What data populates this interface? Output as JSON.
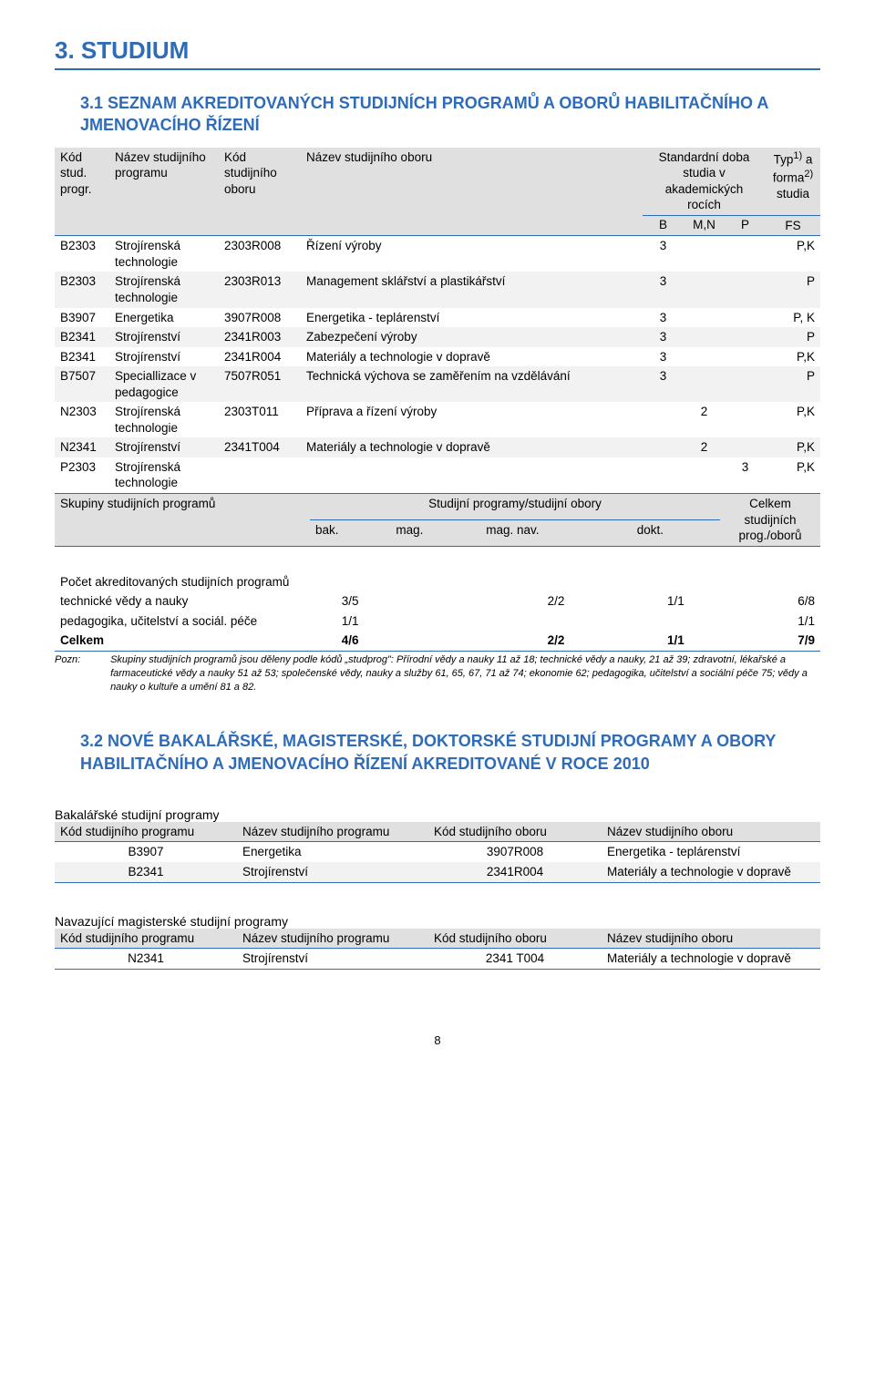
{
  "headings": {
    "h1": "3.  STUDIUM",
    "h2a": "3.1  SEZNAM AKREDITOVANÝCH STUDIJNÍCH PROGRAMŮ A OBORŮ HABILITAČNÍHO A JMENOVACÍHO ŘÍZENÍ",
    "h2b": "3.2  NOVÉ BAKALÁŘSKÉ, MAGISTERSKÉ, DOKTORSKÉ STUDIJNÍ PROGRAMY A OBORY HABILITAČNÍHO A JMENOVACÍHO ŘÍZENÍ AKREDITOVANÉ V ROCE 2010"
  },
  "table1": {
    "head": {
      "c1": "Kód stud. progr.",
      "c2": "Název studijního programu",
      "c3": "Kód studijního oboru",
      "c4": "Název studijního oboru",
      "c5a": "Standardní doba studia v akademických rocích",
      "c5b_prefix": "Typ",
      "c5b_sup1": "1)",
      "c5b_mid": " a forma",
      "c5b_sup2": "2)",
      "c5b_suffix": " studia",
      "b": "B",
      "mn": "M,N",
      "p": "P",
      "fs": "FS"
    },
    "rows": [
      {
        "c1": "B2303",
        "c2": "Strojírenská technologie",
        "c3": "2303R008",
        "c4": "Řízení výroby",
        "b": "3",
        "mn": "",
        "p": "",
        "fs": "P,K"
      },
      {
        "c1": "B2303",
        "c2": "Strojírenská technologie",
        "c3": "2303R013",
        "c4": "Management sklářství a plastikářství",
        "b": "3",
        "mn": "",
        "p": "",
        "fs": "P"
      },
      {
        "c1": "B3907",
        "c2": "Energetika",
        "c3": "3907R008",
        "c4": "Energetika - teplárenství",
        "b": "3",
        "mn": "",
        "p": "",
        "fs": "P, K"
      },
      {
        "c1": "B2341",
        "c2": "Strojírenství",
        "c3": "2341R003",
        "c4": "Zabezpečení výroby",
        "b": "3",
        "mn": "",
        "p": "",
        "fs": "P"
      },
      {
        "c1": "B2341",
        "c2": "Strojírenství",
        "c3": "2341R004",
        "c4": "Materiály a technologie v dopravě",
        "b": "3",
        "mn": "",
        "p": "",
        "fs": "P,K"
      },
      {
        "c1": "B7507",
        "c2": "Speciallizace v pedagogice",
        "c3": "7507R051",
        "c4": "Technická výchova se zaměřením na vzdělávání",
        "b": "3",
        "mn": "",
        "p": "",
        "fs": "P"
      },
      {
        "c1": "N2303",
        "c2": "Strojírenská technologie",
        "c3": "2303T011",
        "c4": "Příprava a řízení výroby",
        "b": "",
        "mn": "2",
        "p": "",
        "fs": "P,K"
      },
      {
        "c1": "N2341",
        "c2": "Strojírenství",
        "c3": "2341T004",
        "c4": "Materiály a technologie v dopravě",
        "b": "",
        "mn": "2",
        "p": "",
        "fs": "P,K"
      },
      {
        "c1": "P2303",
        "c2": "Strojírenská technologie",
        "c3": "",
        "c4": "",
        "b": "",
        "mn": "",
        "p": "3",
        "fs": "P,K"
      }
    ]
  },
  "table2": {
    "title": "Počet akreditovaných studijních programů",
    "head": {
      "c1": "Skupiny studijních programů",
      "span": "Studijní programy/studijní obory",
      "last": "Celkem studijních prog./oborů",
      "bak": "bak.",
      "mag": "mag.",
      "magnav": "mag. nav.",
      "dokt": "dokt."
    },
    "rows": [
      {
        "c1": "technické vědy a nauky",
        "bak": "3/5",
        "mag": "",
        "magnav": "2/2",
        "dokt": "1/1",
        "sum": "6/8"
      },
      {
        "c1": "pedagogika, učitelství a sociál. péče",
        "bak": "1/1",
        "mag": "",
        "magnav": "",
        "dokt": "",
        "sum": "1/1"
      }
    ],
    "total": {
      "c1": "Celkem",
      "bak": "4/6",
      "mag": "",
      "magnav": "2/2",
      "dokt": "1/1",
      "sum": "7/9"
    }
  },
  "note": {
    "label": "Pozn:",
    "text": "Skupiny studijních programů jsou děleny podle kódů „studprog\": Přírodní vědy a nauky 11 až 18; technické vědy a nauky, 21 až 39; zdravotní, lékařské a farmaceutické vědy a nauky 51 až 53; společenské vědy, nauky a služby 61, 65, 67, 71 až 74; ekonomie 62; pedagogika, učitelství a sociální péče 75; vědy a nauky o kultuře a umění 81 a 82."
  },
  "section3": {
    "bak_title": "Bakalářské studijní programy",
    "nav_title": "Navazující magisterské studijní programy",
    "head": {
      "c1": "Kód studijního programu",
      "c2": "Název studijního programu",
      "c3": "Kód studijního oboru",
      "c4": "Název studijního oboru"
    },
    "bak_rows": [
      {
        "c1": "B3907",
        "c2": "Energetika",
        "c3": "3907R008",
        "c4": "Energetika - teplárenství"
      },
      {
        "c1": "B2341",
        "c2": "Strojírenství",
        "c3": "2341R004",
        "c4": "Materiály a technologie v dopravě"
      }
    ],
    "nav_rows": [
      {
        "c1": "N2341",
        "c2": "Strojírenství",
        "c3": "2341 T004",
        "c4": "Materiály a technologie v dopravě"
      }
    ]
  },
  "page_number": "8"
}
